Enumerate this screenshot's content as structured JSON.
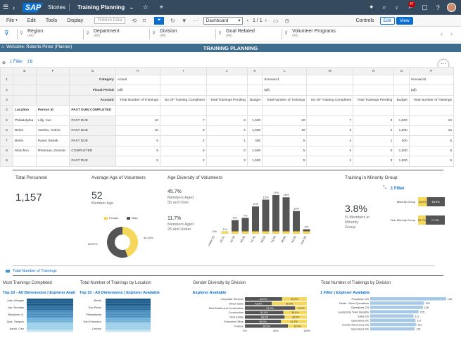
{
  "shell": {
    "logo": "SAP",
    "app": "Stories",
    "story": "Training Planning",
    "notif_count": "47"
  },
  "menu": {
    "file": "File",
    "edit": "Edit",
    "tools": "Tools",
    "display": "Display",
    "publish": "Publish Data",
    "page": "Dashboard",
    "pager": "1 / 1",
    "controls": "Controls",
    "edit_btn": "Edit",
    "view_btn": "View"
  },
  "filters": [
    {
      "label": "Region",
      "value": "(All)"
    },
    {
      "label": "Department",
      "value": "(All)"
    },
    {
      "label": "Division",
      "value": "(All)"
    },
    {
      "label": "Goal Related",
      "value": "(All)"
    },
    {
      "label": "Volunteer Programs",
      "value": "(All)"
    }
  ],
  "panel": {
    "welcome": "Welcome: Roberto Pérez (Planner)",
    "title": "TRAINING PLANNING"
  },
  "table": {
    "filter_link": "1 Filter",
    "cols": [
      "E",
      "F",
      "G",
      "H",
      "I",
      "J",
      "K",
      "L",
      "M",
      "N",
      "O",
      "P"
    ],
    "row_labels": {
      "category": "Category",
      "fiscal": "Fiscal Period",
      "account": "Account"
    },
    "actual": "Actual",
    "scenario1": "Scenario1",
    "scenario2": "Scenario2",
    "all": "(all)",
    "acct": [
      "Total Number of Trainings",
      "No OF Training Completed",
      "Total Trainings Pending",
      "Budget",
      "Total Number of Trainings",
      "No OF Training Completed",
      "Total Trainings Pending",
      "Budget",
      "Total Number of Trainings"
    ],
    "header": [
      "Location",
      "Person Id",
      "PAST DUE| COMPLETED"
    ],
    "rows": [
      {
        "loc": "Philadelphia",
        "person": "Lilly, Sun",
        "status": "PAST DUE",
        "v": [
          "10",
          "7",
          "3",
          "1,500",
          "10",
          "7",
          "3",
          "1,500",
          "10"
        ]
      },
      {
        "loc": "Berlin",
        "person": "Varsha, Yoshio",
        "status": "PAST DUE",
        "v": [
          "10",
          "6",
          "4",
          "1,500",
          "10",
          "6",
          "4",
          "1,500",
          "10"
        ]
      },
      {
        "loc": "Berlin",
        "person": "Pavel, Bartek",
        "status": "PAST DUE",
        "v": [
          "5",
          "4",
          "1",
          "400",
          "5",
          "4",
          "1",
          "400",
          "5"
        ]
      },
      {
        "loc": "München",
        "person": "Rhetorae, Dominic",
        "status": "COMPLETED",
        "v": [
          "5",
          "5",
          "0",
          "1,500",
          "5",
          "5",
          "0",
          "1,500",
          "5"
        ]
      },
      {
        "loc": "",
        "person": "",
        "status": "PAST DUE",
        "v": [
          "5",
          "2",
          "3",
          "1,500",
          "5",
          "2",
          "3",
          "1,500",
          "5"
        ]
      }
    ]
  },
  "kpi": {
    "personnel_title": "Total Personnel",
    "personnel": "1,157"
  },
  "age": {
    "title": "Average Age of Volunteers",
    "value": "52",
    "unit": "Member Age",
    "legend_f": "Female",
    "legend_m": "Male",
    "pct_f": "44.43%",
    "pct_m": "55.57%"
  },
  "diversity": {
    "title": "Age Diversity of Volunteers",
    "p1": "45.7%",
    "p1_lbl1": "Members Aged",
    "p1_lbl2": "55 and Over",
    "p2": "11.7%",
    "p2_lbl1": "Members Aged",
    "p2_lbl2": "25 and Under"
  },
  "minority": {
    "title": "Training in Minority Group",
    "filter": "1 Filter",
    "value": "3.8%",
    "lbl1": "% Members in",
    "lbl2": "Minority",
    "lbl3": "Group",
    "r1": "Minority Group",
    "r2": "Non Minority Group"
  },
  "total_link": "Total Number of Trainings",
  "c1": {
    "title": "Most Trainings Completed",
    "link": "Top 10 - All Dimensions | Explorer Avail"
  },
  "c2": {
    "title": "Total Number of Trainings by Location",
    "link": "Top 10 - All Dimensions | Explorer Available"
  },
  "c3": {
    "title": "Gender Diversity by Division",
    "link": "Explorer Available"
  },
  "c4": {
    "title": "Total Number of Trainings by Division",
    "link": "1 Filter | Explorer Available"
  },
  "chart_data": [
    {
      "type": "pie",
      "title": "Average Age of Volunteers",
      "categories": [
        "Female",
        "Male"
      ],
      "values": [
        44.43,
        55.57
      ]
    },
    {
      "type": "bar",
      "title": "Age Diversity of Volunteers",
      "categories": [
        "Under 25",
        "25-31",
        "32-35",
        "36-40",
        "41-45",
        "46-50",
        "51-55",
        "56-60",
        "61-65",
        "over 65"
      ],
      "series": [
        {
          "name": "",
          "values": [
            0,
            1,
            6,
            7,
            12,
            15,
            17,
            16,
            10,
            2
          ]
        }
      ],
      "value_labels": [
        "0%",
        "1%",
        "6%",
        "7%",
        "12%",
        "15%",
        "17%",
        "16%",
        "10%",
        "2%"
      ]
    },
    {
      "type": "bar",
      "title": "Training in Minority Group",
      "categories": [
        "Minority Group",
        "Non Minority Group"
      ],
      "series": [
        {
          "name": "",
          "values": [
            33.2,
            28.7
          ]
        },
        {
          "name": "",
          "values": [
            66.8,
            71.3
          ]
        }
      ],
      "value_labels": [
        [
          "33.2%",
          "66.8%"
        ],
        [
          "28.7%",
          "71.3%"
        ]
      ]
    },
    {
      "type": "bar",
      "title": "Gender Diversity by Division",
      "categories": [
        "Corporate Services",
        "Direct Sales",
        "Real Estate and Construction",
        "Construction",
        "Real Estate",
        "Executive Office",
        "Finance"
      ],
      "series": [
        {
          "name": "",
          "values": [
            60,
            43.5,
            81,
            62,
            64,
            58.3,
            69.5
          ]
        },
        {
          "name": "",
          "values": [
            40,
            56.5,
            19,
            38,
            36,
            41.7,
            30.5
          ]
        }
      ],
      "value_labels": [
        [
          "60.0%",
          "40.0%"
        ],
        [
          "43.5%",
          "56.5%"
        ],
        [
          "81.0%",
          "19.0%"
        ],
        [
          "62.0%",
          "38.0%"
        ],
        [
          "64.0%",
          "36.0%"
        ],
        [
          "58.3%",
          "41.7%"
        ],
        [
          "69.5%",
          "30.5%"
        ]
      ],
      "xlabels": [
        "0%",
        "50%",
        "100%"
      ]
    },
    {
      "type": "bar",
      "title": "Total Number of Trainings by Division",
      "categories": [
        "Production US",
        "Retail - Store Operations",
        "Operations CN",
        "Leadership Team Benefits",
        "Sales US",
        "Operations UK",
        "Human Resources US",
        "Operations UK"
      ],
      "values": [
        196,
        139,
        136,
        125,
        112,
        117,
        119,
        115
      ]
    }
  ]
}
